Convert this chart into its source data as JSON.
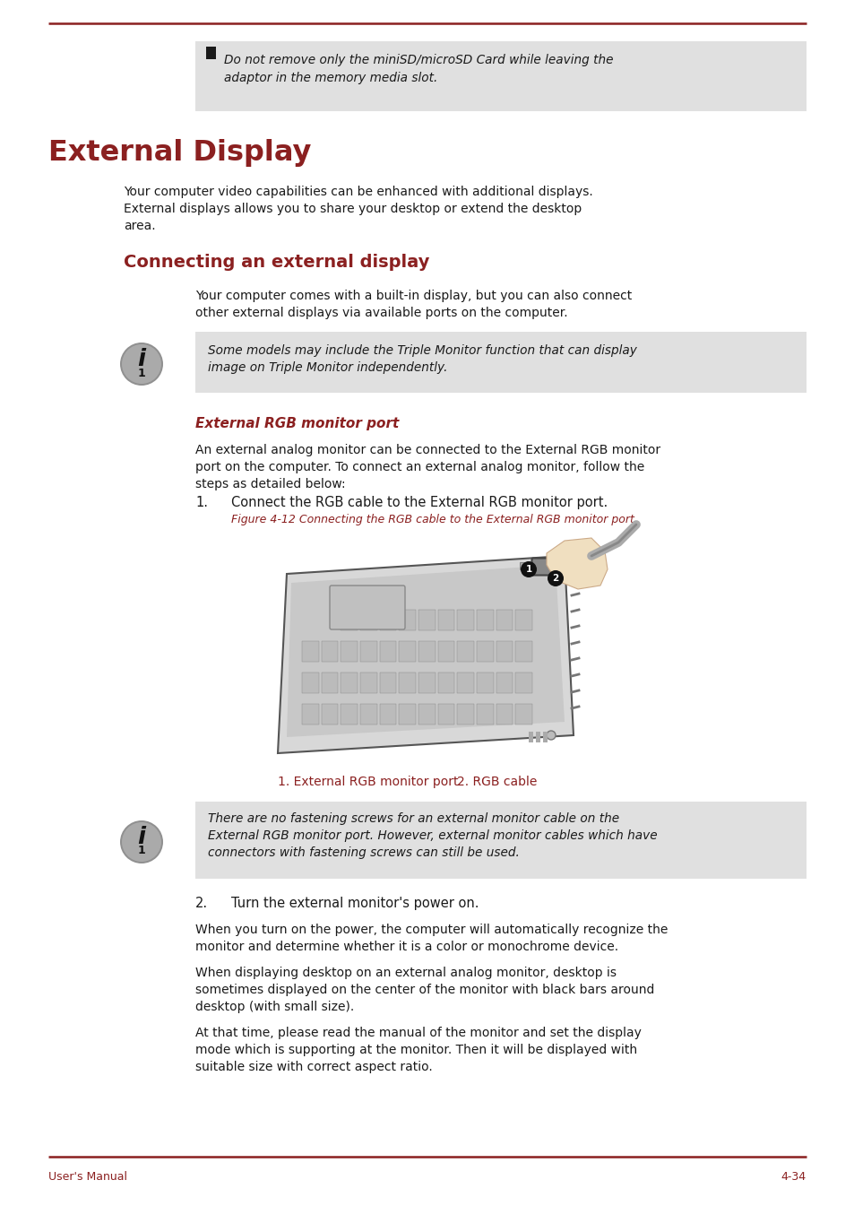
{
  "page_bg": "#ffffff",
  "top_line_color": "#8B2020",
  "footer_line_color": "#8B2020",
  "dark_red": "#8B2020",
  "black": "#1a1a1a",
  "gray_bg": "#e0e0e0",
  "title_main": "External Display",
  "title_sub": "Connecting an external display",
  "footer_left": "User's Manual",
  "footer_right": "4-34",
  "bullet_box_text_line1": "Do not remove only the miniSD/microSD Card while leaving the",
  "bullet_box_text_line2": "adaptor in the memory media slot.",
  "intro_line1": "Your computer video capabilities can be enhanced with additional displays.",
  "intro_line2_1": "External displays allows you to share your desktop or extend the desktop",
  "intro_line2_2": "area.",
  "sub_intro_1": "Your computer comes with a built-in display, but you can also connect",
  "sub_intro_2": "other external displays via available ports on the computer.",
  "info_box1_line1": "Some models may include the Triple Monitor function that can display",
  "info_box1_line2": "image on Triple Monitor independently.",
  "rgb_port_title": "External RGB monitor port",
  "rgb_para1_1": "An external analog monitor can be connected to the External RGB monitor",
  "rgb_para1_2": "port on the computer. To connect an external analog monitor, follow the",
  "rgb_para1_3": "steps as detailed below:",
  "step1_num": "1.",
  "step1_text": "Connect the RGB cable to the External RGB monitor port.",
  "fig_caption": "Figure 4-12 Connecting the RGB cable to the External RGB monitor port",
  "label1": "1. External RGB monitor port",
  "label2": "2. RGB cable",
  "info_box2_line1": "There are no fastening screws for an external monitor cable on the",
  "info_box2_line2": "External RGB monitor port. However, external monitor cables which have",
  "info_box2_line3": "connectors with fastening screws can still be used.",
  "step2_num": "2.",
  "step2_text": "Turn the external monitor's power on.",
  "para_step2_1_1": "When you turn on the power, the computer will automatically recognize the",
  "para_step2_1_2": "monitor and determine whether it is a color or monochrome device.",
  "para_step2_2_1": "When displaying desktop on an external analog monitor, desktop is",
  "para_step2_2_2": "sometimes displayed on the center of the monitor with black bars around",
  "para_step2_2_3": "desktop (with small size).",
  "para_step2_3_1": "At that time, please read the manual of the monitor and set the display",
  "para_step2_3_2": "mode which is supporting at the monitor. Then it will be displayed with",
  "para_step2_3_3": "suitable size with correct aspect ratio."
}
